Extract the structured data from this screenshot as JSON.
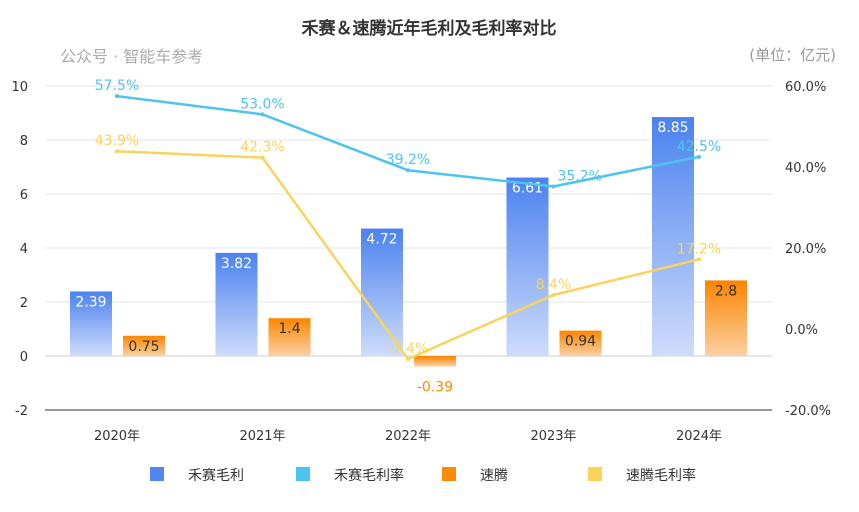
{
  "chart_data": {
    "type": "bar",
    "title": "禾赛＆速腾近年毛利及毛利率对比",
    "unit": "(单位：亿元)",
    "categories": [
      "2020年",
      "2021年",
      "2022年",
      "2023年",
      "2024年"
    ],
    "left_axis": {
      "ylim": [
        -2,
        10
      ],
      "ticks": [
        "-2",
        "0",
        "2",
        "4",
        "6",
        "8",
        "10"
      ]
    },
    "right_axis": {
      "ylim": [
        -20,
        60
      ],
      "ticks": [
        "-20.0%",
        "0.0%",
        "20.0%",
        "40.0%",
        "60.0%"
      ]
    },
    "series": [
      {
        "name": "禾赛毛利",
        "type": "bar",
        "axis": "left",
        "color": "#4f86f0",
        "values": [
          2.39,
          3.82,
          4.72,
          6.61,
          8.85
        ],
        "labels": [
          "2.39",
          "3.82",
          "4.72",
          "6.61",
          "8.85"
        ]
      },
      {
        "name": "速腾",
        "type": "bar",
        "axis": "left",
        "color": "#fb8a05",
        "values": [
          0.75,
          1.4,
          -0.39,
          0.94,
          2.8
        ],
        "labels": [
          "0.75",
          "1.4",
          "-0.39",
          "0.94",
          "2.8"
        ]
      },
      {
        "name": "禾赛毛利率",
        "type": "line",
        "axis": "right",
        "color": "#4dc4ef",
        "values": [
          57.5,
          53.0,
          39.2,
          35.2,
          42.5
        ],
        "labels": [
          "57.5%",
          "53.0%",
          "39.2%",
          "35.2%",
          "42.5%"
        ]
      },
      {
        "name": "速腾毛利率",
        "type": "line",
        "axis": "right",
        "color": "#f8d45a",
        "values": [
          43.9,
          42.3,
          -7.4,
          8.4,
          17.2
        ],
        "labels": [
          "43.9%",
          "42.3%",
          "-7.4%",
          "8.4%",
          "17.2%"
        ]
      }
    ],
    "legend": [
      "禾赛毛利",
      "禾赛毛利率",
      "速腾",
      "速腾毛利率"
    ],
    "legend_placement": "bottom"
  },
  "watermark": "公众号 · 智能车参考"
}
